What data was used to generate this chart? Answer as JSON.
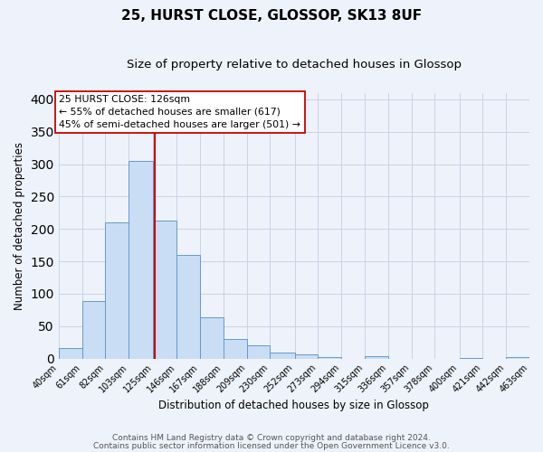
{
  "title": "25, HURST CLOSE, GLOSSOP, SK13 8UF",
  "subtitle": "Size of property relative to detached houses in Glossop",
  "xlabel": "Distribution of detached houses by size in Glossop",
  "ylabel": "Number of detached properties",
  "bin_edges": [
    40,
    61,
    82,
    103,
    125,
    146,
    167,
    188,
    209,
    230,
    252,
    273,
    294,
    315,
    336,
    357,
    378,
    400,
    421,
    442,
    463
  ],
  "bin_labels": [
    "40sqm",
    "61sqm",
    "82sqm",
    "103sqm",
    "125sqm",
    "146sqm",
    "167sqm",
    "188sqm",
    "209sqm",
    "230sqm",
    "252sqm",
    "273sqm",
    "294sqm",
    "315sqm",
    "336sqm",
    "357sqm",
    "378sqm",
    "400sqm",
    "421sqm",
    "442sqm",
    "463sqm"
  ],
  "bar_heights": [
    16,
    89,
    210,
    305,
    213,
    160,
    63,
    30,
    20,
    9,
    7,
    2,
    0,
    4,
    0,
    0,
    0,
    1,
    0,
    2
  ],
  "bar_color": "#c9ddf5",
  "bar_edge_color": "#6699cc",
  "grid_color": "#c8d4e8",
  "vline_x": 126,
  "vline_color": "#cc0000",
  "ylim": [
    0,
    410
  ],
  "annotation_title": "25 HURST CLOSE: 126sqm",
  "annotation_line1": "← 55% of detached houses are smaller (617)",
  "annotation_line2": "45% of semi-detached houses are larger (501) →",
  "footer_line1": "Contains HM Land Registry data © Crown copyright and database right 2024.",
  "footer_line2": "Contains public sector information licensed under the Open Government Licence v3.0.",
  "background_color": "#eef2fa",
  "plot_bg_color": "#eef2fa",
  "title_fontsize": 11,
  "subtitle_fontsize": 9.5,
  "axis_label_fontsize": 8.5,
  "tick_fontsize": 7,
  "footer_fontsize": 6.5,
  "yticks": [
    0,
    50,
    100,
    150,
    200,
    250,
    300,
    350,
    400
  ]
}
